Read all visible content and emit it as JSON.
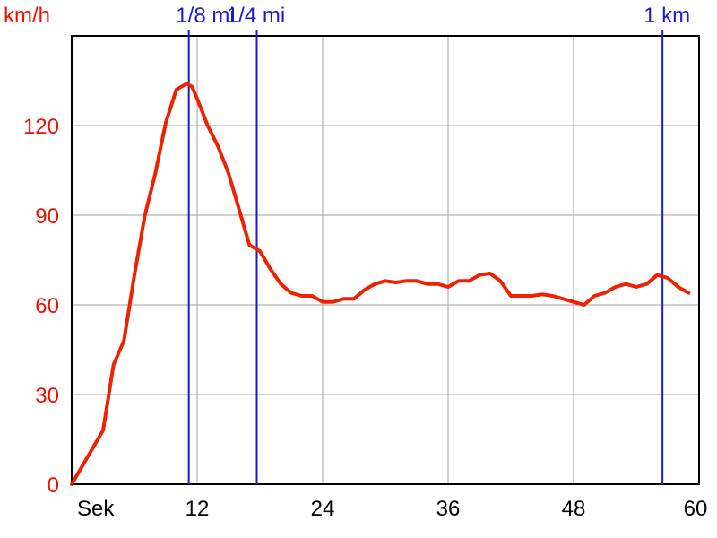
{
  "chart_data": {
    "type": "line",
    "y_unit_label": "km/h",
    "x_unit_label": "Sek",
    "xlim": [
      0,
      60
    ],
    "ylim": [
      0,
      150
    ],
    "xticks": [
      12,
      24,
      36,
      48,
      60
    ],
    "yticks": [
      0,
      30,
      60,
      90,
      120
    ],
    "grid": true,
    "colors": {
      "series": "#ee2200",
      "markers": "#1a1ad0",
      "grid": "#a0a0a0",
      "ytick_text": "#ee1100"
    },
    "markers": [
      {
        "label": "1/8 mi",
        "x": 11.2
      },
      {
        "label": "1/4 mi",
        "x": 17.7
      },
      {
        "label": "1 km",
        "x": 56.5
      }
    ],
    "series": [
      {
        "x": [
          0,
          1,
          2,
          3,
          4,
          5,
          6,
          7,
          8,
          9,
          10,
          11,
          11.5,
          12,
          13,
          14,
          15,
          16,
          17,
          18,
          19,
          20,
          21,
          22,
          23,
          24,
          25,
          26,
          27,
          28,
          29,
          30,
          31,
          32,
          33,
          34,
          35,
          36,
          37,
          38,
          39,
          40,
          41,
          42,
          43,
          44,
          45,
          46,
          47,
          48,
          49,
          50,
          51,
          52,
          53,
          54,
          55,
          56,
          57,
          58,
          59
        ],
        "values": [
          0,
          6,
          12,
          18,
          40,
          48,
          70,
          90,
          104,
          121,
          132,
          134,
          133,
          129,
          120,
          113,
          104,
          92,
          80,
          78,
          72,
          67,
          64,
          63,
          63,
          61,
          61,
          62,
          62,
          65,
          67,
          68,
          67.5,
          68,
          68,
          67,
          67,
          66,
          68,
          68,
          70,
          70.5,
          68,
          63,
          63,
          63,
          63.5,
          63,
          62,
          61,
          60,
          63,
          64,
          66,
          67,
          66,
          67,
          70,
          69,
          66,
          64
        ]
      }
    ]
  }
}
